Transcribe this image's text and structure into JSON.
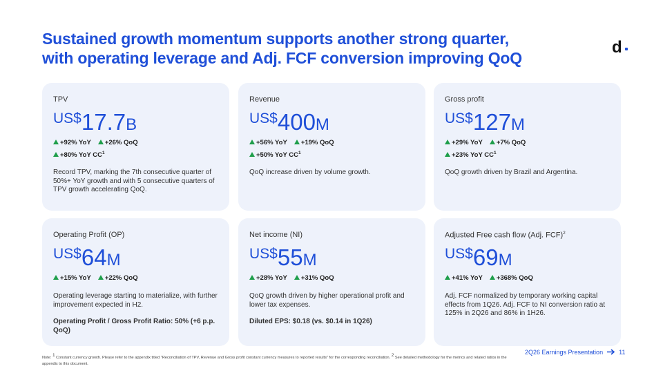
{
  "header": {
    "title_lines": [
      "Sustained growth momentum supports another strong quarter,",
      "with operating leverage and Adj. FCF conversion improving QoQ"
    ],
    "logo": "d"
  },
  "cards": [
    {
      "label": "TPV",
      "currency": "US$",
      "amount": "17.7",
      "unit": "B",
      "metrics": [
        [
          {
            "text": "+92% YoY"
          },
          {
            "text": "+26% QoQ"
          }
        ],
        [
          {
            "text": "+80% YoY CC",
            "sup": "1"
          }
        ]
      ],
      "description": "Record TPV, marking the 7th consecutive quarter of 50%+ YoY growth and with 5 consecutive quarters of TPV growth accelerating QoQ."
    },
    {
      "label": "Revenue",
      "currency": "US$",
      "amount": "400",
      "unit": "M",
      "metrics": [
        [
          {
            "text": "+56% YoY"
          },
          {
            "text": "+19% QoQ"
          }
        ],
        [
          {
            "text": "+50% YoY CC",
            "sup": "1"
          }
        ]
      ],
      "description": "QoQ increase driven by volume growth."
    },
    {
      "label": "Gross profit",
      "currency": "US$",
      "amount": "127",
      "unit": "M",
      "metrics": [
        [
          {
            "text": "+29% YoY"
          },
          {
            "text": "+7% QoQ"
          }
        ],
        [
          {
            "text": "+23% YoY CC",
            "sup": "1"
          }
        ]
      ],
      "description": "QoQ growth driven by Brazil and Argentina."
    },
    {
      "label": "Operating Profit (OP)",
      "currency": "US$",
      "amount": "64",
      "unit": "M",
      "metrics": [
        [
          {
            "text": "+15% YoY"
          },
          {
            "text": "+22% QoQ"
          }
        ]
      ],
      "description": "Operating leverage starting to materialize, with further improvement expected in H2.",
      "note": "Operating Profit / Gross Profit Ratio: 50% (+6 p.p. QoQ)"
    },
    {
      "label": "Net income (NI)",
      "currency": "US$",
      "amount": "55",
      "unit": "M",
      "metrics": [
        [
          {
            "text": "+28% YoY"
          },
          {
            "text": "+31% QoQ"
          }
        ]
      ],
      "description": "QoQ growth driven by higher operational profit and lower tax expenses.",
      "note": "Diluted EPS: $0.18 (vs. $0.14 in 1Q26)"
    },
    {
      "label": "Adjusted Free cash flow (Adj. FCF)",
      "label_sup": "2",
      "currency": "US$",
      "amount": "69",
      "unit": "M",
      "metrics": [
        [
          {
            "text": "+41% YoY"
          },
          {
            "text": "+368% QoQ"
          }
        ]
      ],
      "description": "Adj. FCF normalized by temporary working capital effects from 1Q26. Adj. FCF to NI conversion ratio at 125% in 2Q26 and 86% in 1H26."
    }
  ],
  "footnote": [
    {
      "text": "Note: "
    },
    {
      "sup": "1"
    },
    {
      "text": " Constant currency growth. Please refer to the appendix titled \"Reconciliation of TPV, Revenue and Gross profit constant currency measures to reported results\" for the corresponding reconciliation. "
    },
    {
      "sup": "2"
    },
    {
      "text": " See detailed methodology for the metrics and related ratios in the appendix to this document."
    }
  ],
  "footer": {
    "label": "2Q26 Earnings Presentation",
    "page": "11"
  }
}
